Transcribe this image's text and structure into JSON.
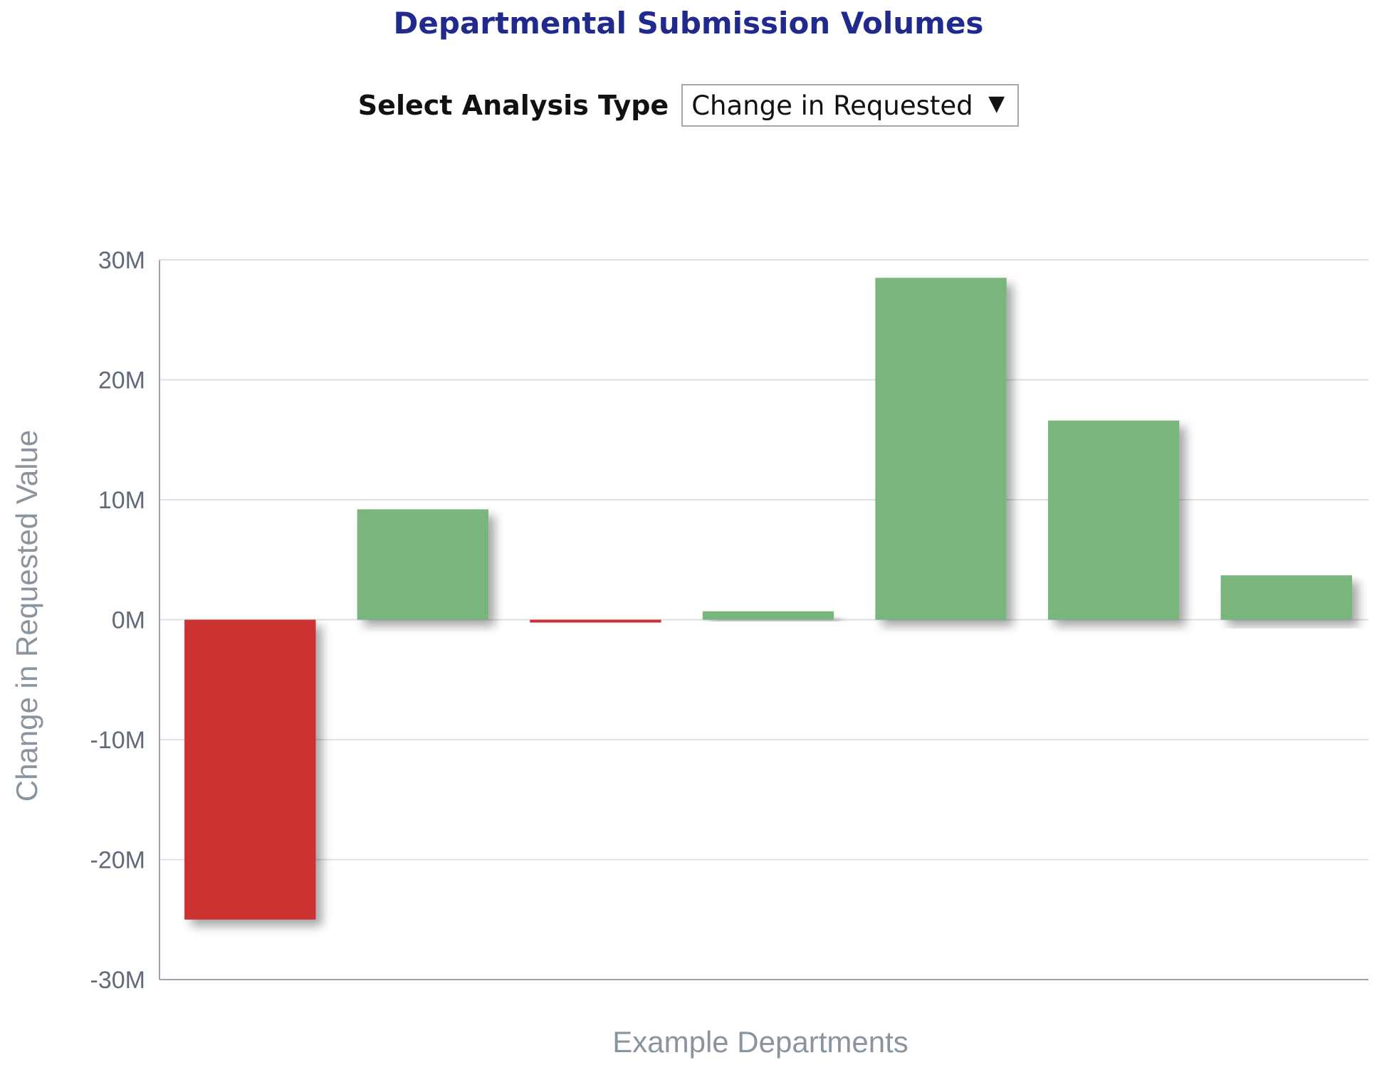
{
  "header": {
    "title": "Departmental Submission Volumes"
  },
  "analysis_selector": {
    "label": "Select Analysis Type",
    "selected": "Change in Requested",
    "arrow": "▼"
  },
  "colors": {
    "title": "#1f2a8c",
    "positive_bar": "#7ab57c",
    "negative_bar": "#cc3030",
    "grid": "#dde2ea",
    "axis": "#9aa4b6"
  },
  "chart_data": {
    "type": "bar",
    "title": "",
    "xlabel": "Example Departments",
    "ylabel": "Change in Requested Value",
    "ylim": [
      -30000000,
      30000000
    ],
    "yticks": [
      30000000,
      20000000,
      10000000,
      0,
      -10000000,
      -20000000,
      -30000000
    ],
    "ytick_labels": [
      "30M",
      "20M",
      "10M",
      "0M",
      "-10M",
      "-20M",
      "-30M"
    ],
    "grid": true,
    "legend": "none",
    "categories": [
      "",
      "",
      "",
      "",
      "",
      "",
      ""
    ],
    "values": [
      -25000000,
      9200000,
      -200000,
      700000,
      28500000,
      16600000,
      3700000
    ]
  }
}
